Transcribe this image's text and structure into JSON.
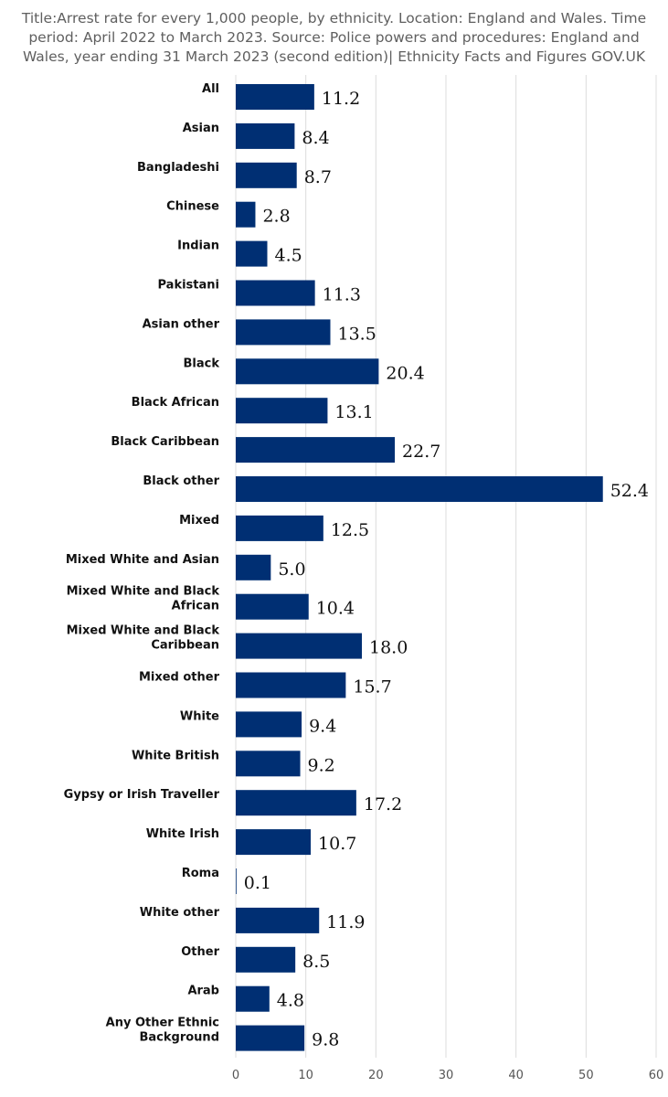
{
  "chart_data": {
    "type": "bar",
    "orientation": "horizontal",
    "title": "Title:Arrest rate for every 1,000 people, by ethnicity. Location: England and Wales. Time period: April 2022 to March 2023. Source: Police powers and procedures: England and Wales, year ending 31 March 2023 (second edition)| Ethnicity Facts and Figures GOV.UK",
    "categories": [
      "All",
      "Asian",
      "Bangladeshi",
      "Chinese",
      "Indian",
      "Pakistani",
      "Asian other",
      "Black",
      "Black African",
      "Black Caribbean",
      "Black other",
      "Mixed",
      "Mixed White and Asian",
      "Mixed White and Black African",
      "Mixed White and Black Caribbean",
      "Mixed other",
      "White",
      "White British",
      "Gypsy or Irish Traveller",
      "White Irish",
      "Roma",
      "White other",
      "Other",
      "Arab",
      "Any Other Ethnic Background"
    ],
    "values": [
      11.2,
      8.4,
      8.7,
      2.8,
      4.5,
      11.3,
      13.5,
      20.4,
      13.1,
      22.7,
      52.4,
      12.5,
      5.0,
      10.4,
      18.0,
      15.7,
      9.4,
      9.2,
      17.2,
      10.7,
      0.1,
      11.9,
      8.5,
      4.8,
      9.8
    ],
    "value_labels": [
      "11.2",
      "8.4",
      "8.7",
      "2.8",
      "4.5",
      "11.3",
      "13.5",
      "20.4",
      "13.1",
      "22.7",
      "52.4",
      "12.5",
      "5.0",
      "10.4",
      "18.0",
      "15.7",
      "9.4",
      "9.2",
      "17.2",
      "10.7",
      "0.1",
      "11.9",
      "8.5",
      "4.8",
      "9.8"
    ],
    "xlim": [
      0,
      60
    ],
    "x_ticks": [
      0,
      10,
      20,
      30,
      40,
      50,
      60
    ],
    "xlabel": "",
    "ylabel": "",
    "grid": "vertical",
    "legend": "none",
    "bar_color": "#002f73",
    "grid_color": "#dcdcdc",
    "title_color": "#5f5f5f"
  }
}
